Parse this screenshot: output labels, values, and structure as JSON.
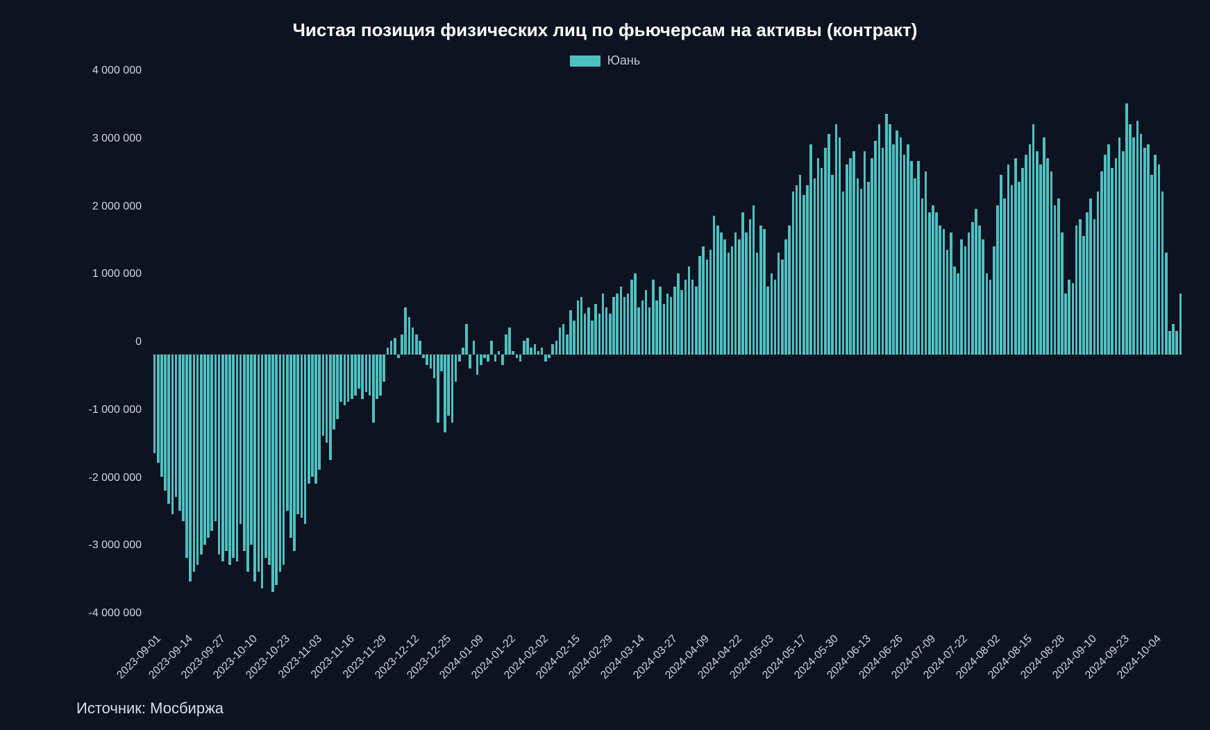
{
  "title": "Чистая позиция физических лиц по фьючерсам на активы (контракт)",
  "title_fontsize": 26,
  "legend": {
    "label": "Юань",
    "swatch_color": "#4fc0c0",
    "label_fontsize": 18
  },
  "source": "Источник: Мосбиржа",
  "source_fontsize": 22,
  "chart": {
    "type": "bar",
    "background_color": "#0d1321",
    "bar_color": "#4fc0c0",
    "axis_text_color": "#cfd6de",
    "axis_fontsize": 16,
    "ylim": [
      -4000000,
      4000000
    ],
    "ytick_step": 1000000,
    "yticks": [
      -4000000,
      -3000000,
      -2000000,
      -1000000,
      0,
      1000000,
      2000000,
      3000000,
      4000000
    ],
    "ytick_labels": [
      "-4 000 000",
      "-3 000 000",
      "-2 000 000",
      "-1 000 000",
      "0",
      "1 000 000",
      "2 000 000",
      "3 000 000",
      "4 000 000"
    ],
    "x_labels": [
      "2023-09-01",
      "2023-09-14",
      "2023-09-27",
      "2023-10-10",
      "2023-10-23",
      "2023-11-03",
      "2023-11-16",
      "2023-11-29",
      "2023-12-12",
      "2023-12-25",
      "2024-01-09",
      "2024-01-22",
      "2024-02-02",
      "2024-02-15",
      "2024-02-29",
      "2024-03-14",
      "2024-03-27",
      "2024-04-09",
      "2024-04-22",
      "2024-05-03",
      "2024-05-17",
      "2024-05-30",
      "2024-06-13",
      "2024-06-26",
      "2024-07-09",
      "2024-07-22",
      "2024-08-02",
      "2024-08-15",
      "2024-08-28",
      "2024-09-10",
      "2024-09-23",
      "2024-10-04"
    ],
    "x_label_step": 9,
    "bar_width_ratio": 0.7,
    "values": [
      -1450000,
      -1600000,
      -1800000,
      -2000000,
      -2200000,
      -2350000,
      -2100000,
      -2300000,
      -2450000,
      -3000000,
      -3350000,
      -3200000,
      -3100000,
      -2950000,
      -2800000,
      -2700000,
      -2600000,
      -2450000,
      -2950000,
      -3050000,
      -2900000,
      -3100000,
      -3000000,
      -3050000,
      -2500000,
      -2900000,
      -3200000,
      -2800000,
      -3350000,
      -3200000,
      -3450000,
      -3000000,
      -3100000,
      -3500000,
      -3400000,
      -3200000,
      -3100000,
      -2300000,
      -2700000,
      -2900000,
      -2350000,
      -2400000,
      -2500000,
      -1900000,
      -1800000,
      -1900000,
      -1700000,
      -1200000,
      -1300000,
      -1550000,
      -1100000,
      -950000,
      -700000,
      -750000,
      -700000,
      -650000,
      -600000,
      -500000,
      -650000,
      -550000,
      -600000,
      -1000000,
      -650000,
      -600000,
      -400000,
      100000,
      200000,
      250000,
      -50000,
      300000,
      700000,
      550000,
      400000,
      300000,
      200000,
      -50000,
      -150000,
      -200000,
      -350000,
      -1000000,
      -250000,
      -1150000,
      -900000,
      -1000000,
      -400000,
      -100000,
      100000,
      450000,
      -200000,
      200000,
      -300000,
      -150000,
      -50000,
      -100000,
      200000,
      -100000,
      50000,
      -150000,
      300000,
      400000,
      50000,
      -50000,
      -100000,
      200000,
      250000,
      100000,
      150000,
      50000,
      100000,
      -100000,
      -50000,
      150000,
      200000,
      400000,
      450000,
      300000,
      650000,
      500000,
      800000,
      850000,
      600000,
      700000,
      500000,
      750000,
      600000,
      900000,
      700000,
      600000,
      850000,
      900000,
      1000000,
      850000,
      900000,
      1100000,
      1200000,
      700000,
      800000,
      950000,
      700000,
      1100000,
      800000,
      1000000,
      750000,
      900000,
      850000,
      1000000,
      1200000,
      950000,
      1100000,
      1300000,
      1100000,
      1000000,
      1450000,
      1600000,
      1400000,
      1550000,
      2050000,
      1900000,
      1800000,
      1700000,
      1500000,
      1600000,
      1800000,
      1700000,
      2100000,
      1800000,
      2000000,
      2200000,
      1500000,
      1900000,
      1850000,
      1000000,
      1200000,
      1100000,
      1500000,
      1400000,
      1700000,
      1900000,
      2400000,
      2500000,
      2650000,
      2350000,
      2500000,
      3100000,
      2600000,
      2900000,
      2750000,
      3050000,
      3250000,
      2650000,
      3400000,
      3200000,
      2400000,
      2800000,
      2900000,
      3000000,
      2600000,
      2450000,
      3000000,
      2550000,
      2900000,
      3150000,
      3400000,
      3050000,
      3550000,
      3400000,
      3100000,
      3300000,
      3200000,
      2950000,
      3100000,
      2850000,
      2600000,
      2850000,
      2300000,
      2700000,
      2100000,
      2200000,
      2100000,
      1900000,
      1850000,
      1550000,
      1800000,
      1300000,
      1200000,
      1700000,
      1600000,
      1800000,
      1950000,
      2150000,
      1900000,
      1700000,
      1200000,
      1100000,
      1600000,
      2200000,
      2650000,
      2300000,
      2800000,
      2500000,
      2900000,
      2550000,
      2750000,
      2950000,
      3100000,
      3400000,
      3000000,
      2800000,
      3200000,
      2900000,
      2700000,
      2200000,
      2300000,
      1800000,
      900000,
      1100000,
      1050000,
      1900000,
      2000000,
      1750000,
      2100000,
      2300000,
      2000000,
      2400000,
      2700000,
      2950000,
      3100000,
      2750000,
      2900000,
      3200000,
      3000000,
      3700000,
      3400000,
      3200000,
      3450000,
      3250000,
      3050000,
      3100000,
      2650000,
      2950000,
      2800000,
      2400000,
      1500000,
      350000,
      450000,
      350000,
      900000
    ]
  }
}
